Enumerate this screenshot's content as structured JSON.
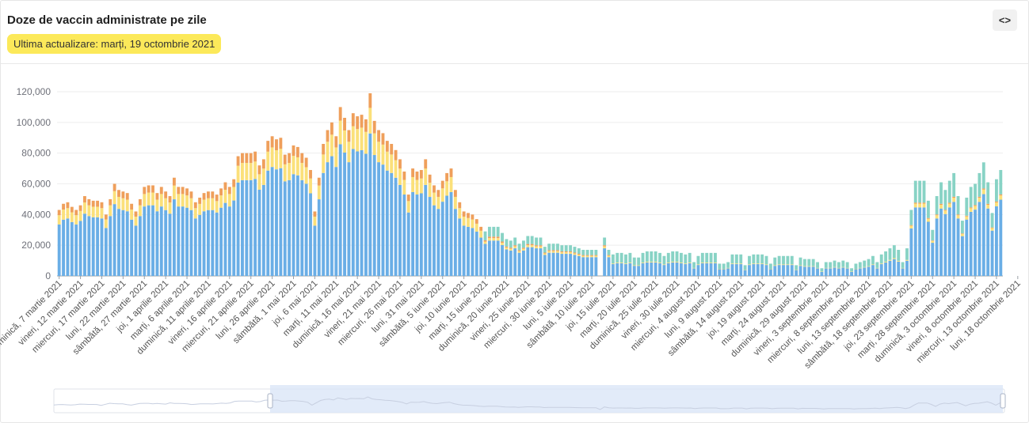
{
  "header": {
    "title": "Doze de vaccin administrate pe zile",
    "updated": "Ultima actualizare: marți, 19 octombrie 2021",
    "embed_icon": "code-icon"
  },
  "colors": {
    "dose1": "#6aaee6",
    "dose2": "#fbe07a",
    "dose3": "#ef9f5b",
    "dose4": "#88d3c5",
    "badge": "#fce95a"
  },
  "chart_data": {
    "type": "bar",
    "stacked": true,
    "ylim": [
      0,
      120000
    ],
    "yticks": [
      "0",
      "20,000",
      "40,000",
      "60,000",
      "80,000",
      "100,000",
      "120,000"
    ],
    "ytick_values": [
      0,
      20000,
      40000,
      60000,
      80000,
      100000,
      120000
    ],
    "grid": true,
    "legend": "none",
    "date_range": [
      "2021-03-07",
      "2021-10-19"
    ],
    "xtick_labels": [
      "duminică, 7 martie 2021",
      "vineri, 12 martie 2021",
      "miercuri, 17 martie 2021",
      "luni, 22 martie 2021",
      "sâmbătă, 27 martie 2021",
      "joi, 1 aprilie 2021",
      "marți, 6 aprilie 2021",
      "duminică, 11 aprilie 2021",
      "vineri, 16 aprilie 2021",
      "miercuri, 21 aprilie 2021",
      "luni, 26 aprilie 2021",
      "sâmbătă, 1 mai 2021",
      "joi, 6 mai 2021",
      "marți, 11 mai 2021",
      "duminică, 16 mai 2021",
      "vineri, 21 mai 2021",
      "miercuri, 26 mai 2021",
      "luni, 31 mai 2021",
      "sâmbătă, 5 iunie 2021",
      "joi, 10 iunie 2021",
      "marți, 15 iunie 2021",
      "duminică, 20 iunie 2021",
      "vineri, 25 iunie 2021",
      "miercuri, 30 iunie 2021",
      "luni, 5 iulie 2021",
      "sâmbătă, 10 iulie 2021",
      "joi, 15 iulie 2021",
      "marți, 20 iulie 2021",
      "duminică, 25 iulie 2021",
      "vineri, 30 iulie 2021",
      "miercuri, 4 august 2021",
      "luni, 9 august 2021",
      "sâmbătă, 14 august 2021",
      "joi, 19 august 2021",
      "marți, 24 august 2021",
      "duminică, 29 august 2021",
      "vineri, 3 septembrie 2021",
      "miercuri, 8 septembrie 2021",
      "luni, 13 septembrie 2021",
      "sâmbătă, 18 septembrie 2021",
      "joi, 23 septembrie 2021",
      "marți, 28 septembrie 2021",
      "duminică, 3 octombrie 2021",
      "vineri, 8 octombrie 2021",
      "miercuri, 13 octombrie 2021",
      "luni, 18 octombrie 2021"
    ],
    "series_colors": [
      "#6aaee6",
      "#fbe07a",
      "#ef9f5b",
      "#88d3c5"
    ],
    "totals": [
      43000,
      47000,
      48000,
      45000,
      43000,
      46000,
      52000,
      50000,
      49000,
      49000,
      48000,
      40000,
      50000,
      60000,
      56000,
      55000,
      54000,
      47000,
      42000,
      50000,
      58000,
      59000,
      59000,
      54000,
      58000,
      55000,
      52000,
      64000,
      58000,
      58000,
      57000,
      55000,
      48000,
      51000,
      54000,
      55000,
      55000,
      53000,
      57000,
      61000,
      58000,
      63000,
      78000,
      80000,
      80000,
      80000,
      81000,
      72000,
      76000,
      88000,
      91000,
      89000,
      90000,
      79000,
      80000,
      85000,
      84000,
      80000,
      77000,
      69000,
      42000,
      64000,
      86000,
      95000,
      100000,
      91000,
      110000,
      103000,
      95000,
      106000,
      104000,
      105000,
      102000,
      119000,
      101000,
      95000,
      93000,
      88000,
      86000,
      82000,
      76000,
      68000,
      53000,
      70000,
      68000,
      69000,
      76000,
      66000,
      59000,
      56000,
      62000,
      67000,
      70000,
      56000,
      48000,
      42000,
      41000,
      40000,
      37000,
      32000,
      29000,
      32000,
      32000,
      32000,
      28000,
      24000,
      23000,
      25000,
      21000,
      23000,
      26000,
      26000,
      25000,
      25000,
      19000,
      21000,
      21000,
      21000,
      20000,
      20000,
      20000,
      19000,
      18000,
      17000,
      17000,
      17000,
      17000,
      0,
      25000,
      17000,
      14000,
      15000,
      15000,
      14000,
      15000,
      12000,
      12000,
      15000,
      16000,
      16000,
      16000,
      15000,
      13000,
      15000,
      16000,
      16000,
      15000,
      14000,
      15000,
      9000,
      13000,
      15000,
      15000,
      15000,
      15000,
      8000,
      8000,
      9000,
      14000,
      14000,
      14000,
      7000,
      13000,
      14000,
      14000,
      14000,
      13000,
      8000,
      12000,
      13000,
      13000,
      13000,
      13000,
      7000,
      12000,
      11000,
      11000,
      11000,
      9000,
      5000,
      9000,
      9000,
      10000,
      9000,
      10000,
      9000,
      5000,
      8000,
      9000,
      10000,
      11000,
      13000,
      9000,
      14000,
      16000,
      18000,
      20000,
      17000,
      9000,
      18000,
      43000,
      62000,
      62000,
      62000,
      49000,
      30000,
      52000,
      61000,
      56000,
      62000,
      67000,
      52000,
      36000,
      51000,
      58000,
      60000,
      67000,
      74000,
      61000,
      41000,
      63000,
      69000
    ],
    "dose1_share_phase": "blue dominant; yellow/orange in early period; teal (booster) from mid-June onward"
  },
  "slider": {
    "label": "data-zoom"
  }
}
